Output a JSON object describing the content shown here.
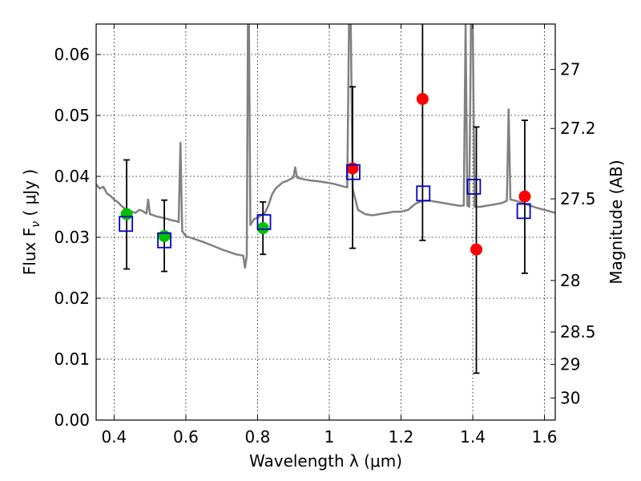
{
  "chart_data": {
    "type": "scatter",
    "xlabel": "Wavelength  λ (μm)",
    "ylabel": "Flux  F",
    "ylabel_subscript": "ν",
    "ylabel_units": " ( μJy )",
    "y2label": "Magnitude (AB)",
    "xlim": [
      0.35,
      1.63
    ],
    "ylim": [
      0.0,
      0.065
    ],
    "xticks": [
      0.4,
      0.6,
      0.8,
      1.0,
      1.2,
      1.4,
      1.6
    ],
    "xtick_labels": [
      "0.4",
      "0.6",
      "0.8",
      "1",
      "1.2",
      "1.4",
      "1.6"
    ],
    "yticks": [
      0.0,
      0.01,
      0.02,
      0.03,
      0.04,
      0.05,
      0.06
    ],
    "ytick_labels": [
      "0.00",
      "0.01",
      "0.02",
      "0.03",
      "0.04",
      "0.05",
      "0.06"
    ],
    "y2ticks": [
      27.0,
      27.2,
      27.5,
      28.0,
      28.5,
      29.0,
      30.0
    ],
    "y2tick_labels": [
      "27",
      "27.2",
      "27.5",
      "28",
      "28.5",
      "29",
      "30"
    ],
    "grid": true,
    "colors": {
      "template": "#808080",
      "green": "#00c000",
      "red": "#ff0000",
      "model": "#0000cc",
      "errorbar": "#000000"
    },
    "series": [
      {
        "kind": "errorbar",
        "points": [
          {
            "x": 0.435,
            "y": 0.0338,
            "yerr_low": 0.0248,
            "yerr_high": 0.0427
          },
          {
            "x": 0.54,
            "y": 0.0302,
            "yerr_low": 0.0244,
            "yerr_high": 0.0361
          },
          {
            "x": 0.815,
            "y": 0.0315,
            "yerr_low": 0.0272,
            "yerr_high": 0.0358
          },
          {
            "x": 1.065,
            "y": 0.0413,
            "yerr_low": 0.0282,
            "yerr_high": 0.0547
          },
          {
            "x": 1.26,
            "y": 0.0527,
            "yerr_low": 0.0295,
            "yerr_high": 0.065
          },
          {
            "x": 1.41,
            "y": 0.028,
            "yerr_low": 0.0077,
            "yerr_high": 0.0481
          },
          {
            "x": 1.545,
            "y": 0.0367,
            "yerr_low": 0.0241,
            "yerr_high": 0.0492
          }
        ]
      },
      {
        "kind": "points_green",
        "points": [
          {
            "x": 0.435,
            "y": 0.0338
          },
          {
            "x": 0.54,
            "y": 0.0302
          },
          {
            "x": 0.815,
            "y": 0.0315
          }
        ]
      },
      {
        "kind": "points_red",
        "points": [
          {
            "x": 1.065,
            "y": 0.0413
          },
          {
            "x": 1.26,
            "y": 0.0527
          },
          {
            "x": 1.41,
            "y": 0.028
          },
          {
            "x": 1.545,
            "y": 0.0367
          }
        ]
      },
      {
        "kind": "model_squares",
        "points": [
          {
            "x": 0.433,
            "y": 0.0322
          },
          {
            "x": 0.54,
            "y": 0.0295
          },
          {
            "x": 0.818,
            "y": 0.0325
          },
          {
            "x": 1.067,
            "y": 0.0407
          },
          {
            "x": 1.262,
            "y": 0.0372
          },
          {
            "x": 1.403,
            "y": 0.0383
          },
          {
            "x": 1.542,
            "y": 0.0343
          }
        ]
      },
      {
        "kind": "template_spectrum",
        "points": [
          [
            0.35,
            0.0387
          ],
          [
            0.36,
            0.038
          ],
          [
            0.37,
            0.0383
          ],
          [
            0.38,
            0.0372
          ],
          [
            0.39,
            0.0368
          ],
          [
            0.4,
            0.0362
          ],
          [
            0.41,
            0.0358
          ],
          [
            0.42,
            0.0352
          ],
          [
            0.43,
            0.0347
          ],
          [
            0.44,
            0.0344
          ],
          [
            0.45,
            0.0342
          ],
          [
            0.46,
            0.034
          ],
          [
            0.47,
            0.0345
          ],
          [
            0.48,
            0.0343
          ],
          [
            0.49,
            0.0339
          ],
          [
            0.495,
            0.0362
          ],
          [
            0.5,
            0.0338
          ],
          [
            0.51,
            0.0336
          ],
          [
            0.52,
            0.0334
          ],
          [
            0.53,
            0.0333
          ],
          [
            0.54,
            0.0331
          ],
          [
            0.55,
            0.033
          ],
          [
            0.56,
            0.0328
          ],
          [
            0.57,
            0.0327
          ],
          [
            0.58,
            0.0325
          ],
          [
            0.585,
            0.0455
          ],
          [
            0.59,
            0.031
          ],
          [
            0.6,
            0.0302
          ],
          [
            0.62,
            0.0298
          ],
          [
            0.65,
            0.0292
          ],
          [
            0.68,
            0.0285
          ],
          [
            0.7,
            0.028
          ],
          [
            0.72,
            0.0276
          ],
          [
            0.74,
            0.0272
          ],
          [
            0.76,
            0.027
          ],
          [
            0.765,
            0.025
          ],
          [
            0.77,
            0.027
          ],
          [
            0.773,
            0.065
          ],
          [
            0.776,
            0.065
          ],
          [
            0.78,
            0.032
          ],
          [
            0.79,
            0.033
          ],
          [
            0.8,
            0.0332
          ],
          [
            0.82,
            0.034
          ],
          [
            0.83,
            0.0352
          ],
          [
            0.84,
            0.037
          ],
          [
            0.85,
            0.038
          ],
          [
            0.86,
            0.0385
          ],
          [
            0.87,
            0.039
          ],
          [
            0.88,
            0.0392
          ],
          [
            0.89,
            0.0395
          ],
          [
            0.9,
            0.0398
          ],
          [
            0.905,
            0.0415
          ],
          [
            0.91,
            0.0398
          ],
          [
            0.93,
            0.0395
          ],
          [
            0.95,
            0.0393
          ],
          [
            0.97,
            0.0392
          ],
          [
            0.99,
            0.039
          ],
          [
            1.01,
            0.0388
          ],
          [
            1.03,
            0.0385
          ],
          [
            1.05,
            0.0382
          ],
          [
            1.055,
            0.065
          ],
          [
            1.06,
            0.065
          ],
          [
            1.065,
            0.038
          ],
          [
            1.08,
            0.0345
          ],
          [
            1.1,
            0.0338
          ],
          [
            1.12,
            0.0336
          ],
          [
            1.14,
            0.0338
          ],
          [
            1.16,
            0.034
          ],
          [
            1.18,
            0.0342
          ],
          [
            1.2,
            0.0342
          ],
          [
            1.22,
            0.0345
          ],
          [
            1.23,
            0.035
          ],
          [
            1.24,
            0.0355
          ],
          [
            1.26,
            0.036
          ],
          [
            1.28,
            0.036
          ],
          [
            1.3,
            0.0358
          ],
          [
            1.32,
            0.0356
          ],
          [
            1.34,
            0.0354
          ],
          [
            1.36,
            0.0352
          ],
          [
            1.375,
            0.0352
          ],
          [
            1.38,
            0.065
          ],
          [
            1.385,
            0.0352
          ],
          [
            1.39,
            0.035
          ],
          [
            1.395,
            0.065
          ],
          [
            1.4,
            0.065
          ],
          [
            1.405,
            0.035
          ],
          [
            1.42,
            0.035
          ],
          [
            1.44,
            0.0352
          ],
          [
            1.46,
            0.0354
          ],
          [
            1.48,
            0.0356
          ],
          [
            1.495,
            0.036
          ],
          [
            1.5,
            0.051
          ],
          [
            1.505,
            0.0362
          ],
          [
            1.52,
            0.036
          ],
          [
            1.54,
            0.0356
          ],
          [
            1.56,
            0.0352
          ],
          [
            1.58,
            0.0348
          ],
          [
            1.6,
            0.0345
          ],
          [
            1.63,
            0.034
          ]
        ]
      }
    ]
  }
}
